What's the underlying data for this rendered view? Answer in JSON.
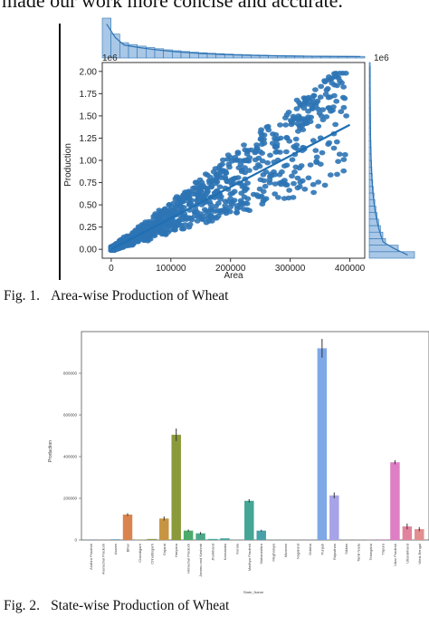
{
  "intro_text": "made our work more concise and accurate.",
  "figures": [
    {
      "number": "Fig. 1.",
      "caption": "Area-wise Production of Wheat"
    },
    {
      "number": "Fig. 2.",
      "caption": "State-wise Production of Wheat"
    }
  ],
  "colors": {
    "scatter": "#2e74b5",
    "fit": "#1f6fb2",
    "axis": "#333333"
  },
  "chart_data": [
    {
      "type": "scatter",
      "title": "",
      "xlabel": "Area",
      "ylabel": "Production",
      "y_multiplier": "1e6",
      "x_side_multiplier": "1e6",
      "xlim": [
        -15000,
        425000
      ],
      "ylim": [
        -0.1,
        2.1
      ],
      "xticks": [
        0,
        100000,
        200000,
        300000,
        400000
      ],
      "xtick_labels": [
        "0",
        "100000",
        "200000",
        "300000",
        "400000"
      ],
      "yticks": [
        0.0,
        0.25,
        0.5,
        0.75,
        1.0,
        1.25,
        1.5,
        1.75,
        2.0
      ],
      "ytick_labels": [
        "0.00",
        "0.25",
        "0.50",
        "0.75",
        "1.00",
        "1.25",
        "1.50",
        "1.75",
        "2.00"
      ],
      "regression_line": {
        "x": [
          0,
          400000
        ],
        "y": [
          0.0,
          1.4
        ]
      },
      "marginals": "histograms on top and right, skewed toward zero",
      "legend": "none",
      "grid": false
    },
    {
      "type": "bar",
      "title": "",
      "xlabel": "State_Name",
      "ylabel": "Production",
      "ylim": [
        0,
        1000000
      ],
      "yticks": [
        0,
        200000,
        400000,
        600000,
        800000
      ],
      "ytick_labels": [
        "0",
        "200000",
        "400000",
        "600000",
        "800000"
      ],
      "categories": [
        "Andhra Pradesh",
        "Arunachal Pradesh",
        "Assam",
        "Bihar",
        "Chandigarh",
        "Chhattisgarh",
        "Gujarat",
        "Haryana",
        "Himachal Pradesh",
        "Jammu and Kashmir",
        "Jharkhand",
        "Karnataka",
        "Kerala",
        "Madhya Pradesh",
        "Maharashtra",
        "Meghalaya",
        "Mizoram",
        "Nagaland",
        "Odisha",
        "Punjab",
        "Rajasthan",
        "Sikkim",
        "Tamil Nadu",
        "Telangana",
        "Tripura",
        "Uttar Pradesh",
        "Uttarakhand",
        "West Bengal"
      ],
      "values": [
        1000,
        500,
        3000,
        122000,
        1000,
        5000,
        103000,
        505000,
        45000,
        32000,
        5000,
        8000,
        500,
        188000,
        45000,
        500,
        300,
        500,
        1000,
        920000,
        214000,
        500,
        500,
        1000,
        3000,
        373000,
        65000,
        52000
      ],
      "error": [
        0,
        0,
        0,
        6000,
        0,
        0,
        10000,
        30000,
        5000,
        6000,
        0,
        0,
        0,
        8000,
        4000,
        0,
        0,
        0,
        0,
        45000,
        14000,
        0,
        0,
        0,
        0,
        10000,
        14000,
        10000
      ],
      "bar_colors": [
        "#4c72b0",
        "#6a9a7a",
        "#4a8fb0",
        "#d9844f",
        "#a8b04a",
        "#8aa04a",
        "#c79542",
        "#8a9a3a",
        "#4caa6a",
        "#4aa888",
        "#4aa898",
        "#48a6a0",
        "#4aa4a8",
        "#45a696",
        "#48a0a8",
        "#509ab0",
        "#5a94b8",
        "#6a8ec0",
        "#7a88c8",
        "#7ea8e6",
        "#a7a3e8",
        "#b09ae0",
        "#c094d8",
        "#cc8ed0",
        "#d68ac8",
        "#de7fc5",
        "#e2839e",
        "#e38f90"
      ],
      "legend": "none",
      "grid": false
    }
  ]
}
